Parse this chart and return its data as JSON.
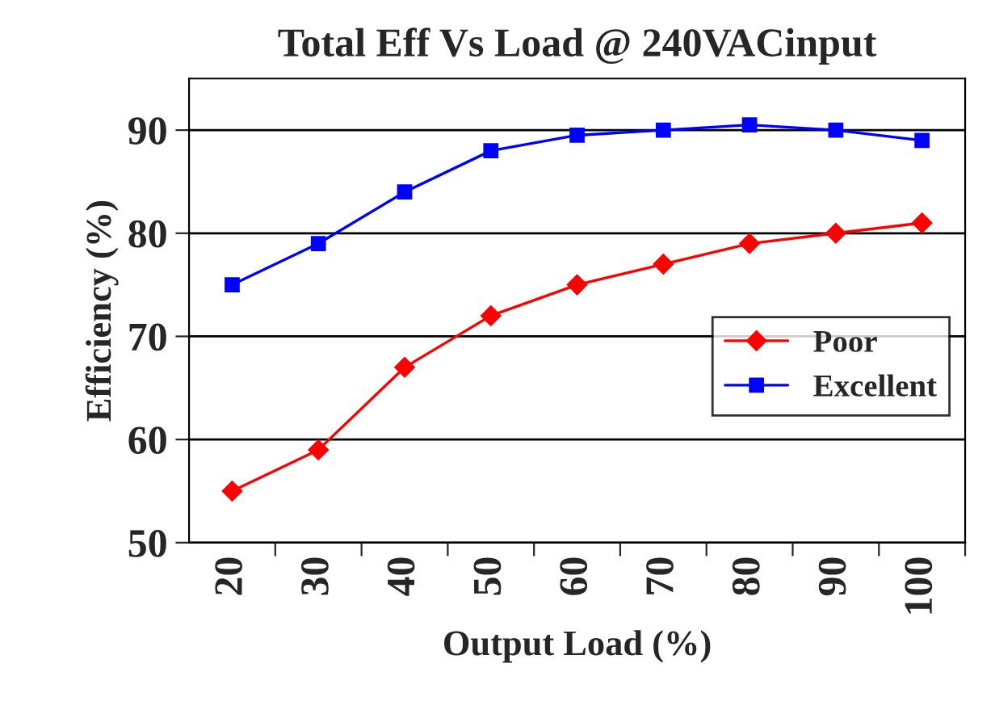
{
  "chart_data": {
    "type": "line",
    "title": "Total Eff Vs Load @ 240VACinput",
    "xlabel": "Output Load (%)",
    "ylabel": "Efficiency (%)",
    "categories": [
      "20",
      "30",
      "40",
      "50",
      "60",
      "70",
      "80",
      "90",
      "100"
    ],
    "series": [
      {
        "name": "Poor",
        "color": "#ff0000",
        "marker": "diamond",
        "values": [
          55,
          59,
          67,
          72,
          75,
          77,
          79,
          80,
          81
        ]
      },
      {
        "name": "Excellent",
        "color": "#0000ff",
        "marker": "square",
        "values": [
          75,
          79,
          84,
          88,
          89.5,
          90,
          90.5,
          90,
          89
        ]
      }
    ],
    "ylim": [
      50,
      95
    ],
    "yticks": [
      50,
      60,
      70,
      80,
      90
    ],
    "grid": "y",
    "legend": "right",
    "line_style": "solid"
  }
}
